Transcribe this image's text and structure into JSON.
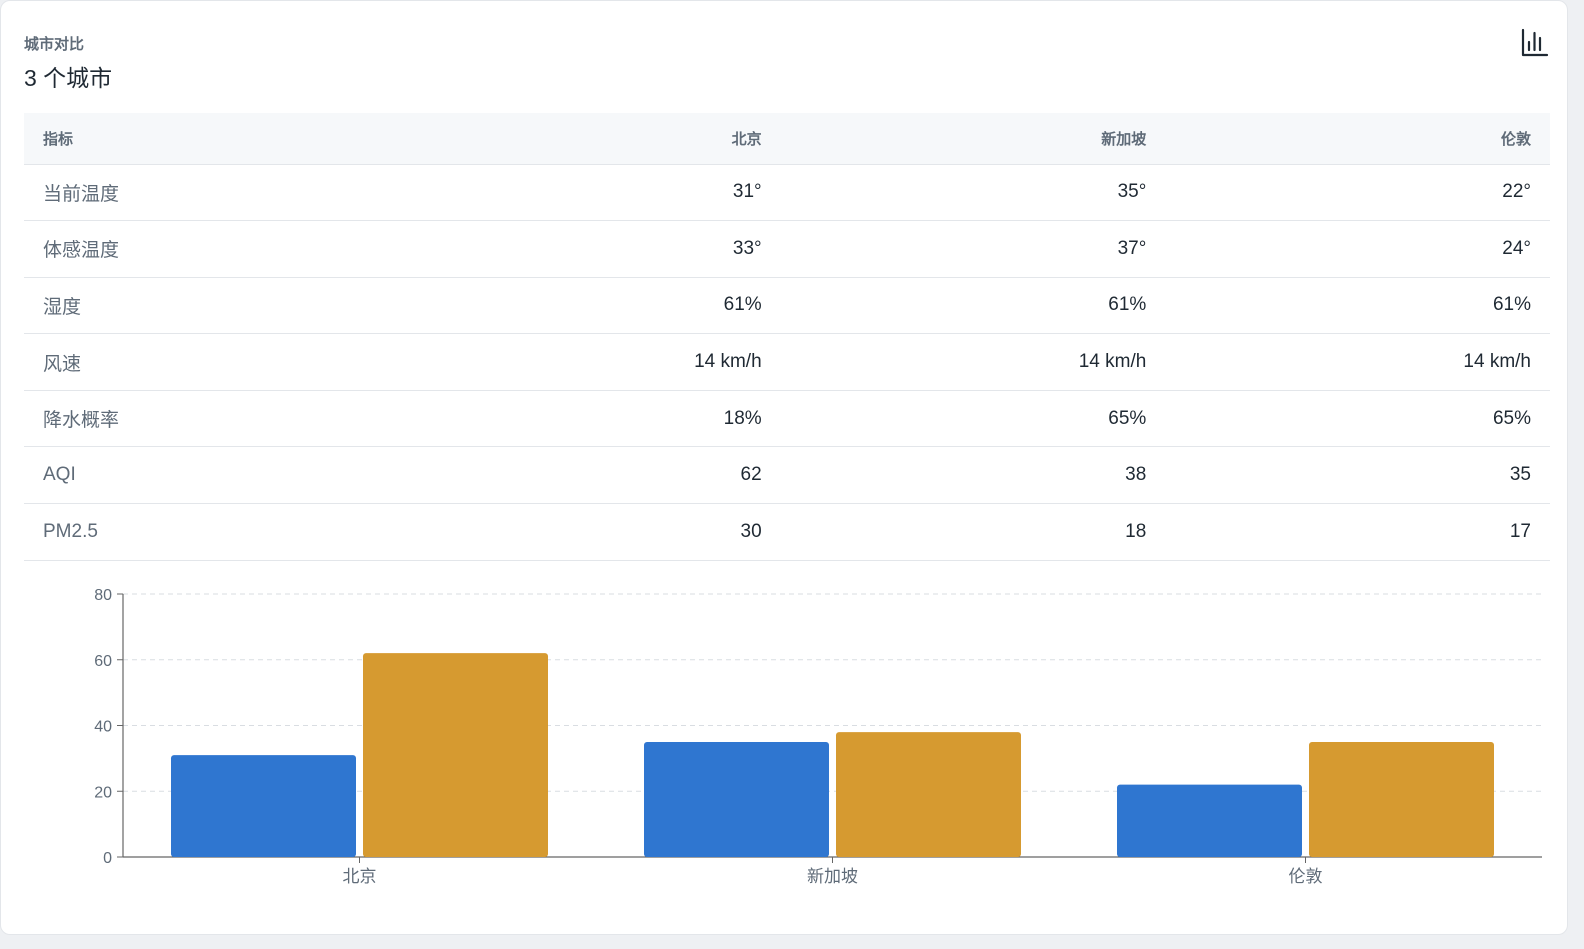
{
  "card": {
    "kicker": "城市对比",
    "title": "3 个城市",
    "toggle_icon": "bar-chart-icon"
  },
  "table": {
    "header": [
      "指标",
      "北京",
      "新加坡",
      "伦敦"
    ],
    "rows": [
      [
        "当前温度",
        "31°",
        "35°",
        "22°"
      ],
      [
        "体感温度",
        "33°",
        "37°",
        "24°"
      ],
      [
        "湿度",
        "61%",
        "61%",
        "61%"
      ],
      [
        "风速",
        "14 km/h",
        "14 km/h",
        "14 km/h"
      ],
      [
        "降水概率",
        "18%",
        "65%",
        "65%"
      ],
      [
        "AQI",
        "62",
        "38",
        "35"
      ],
      [
        "PM2.5",
        "30",
        "18",
        "17"
      ]
    ]
  },
  "chart_data": {
    "type": "bar",
    "categories": [
      "北京",
      "新加坡",
      "伦敦"
    ],
    "series": [
      {
        "values": [
          31,
          35,
          22
        ],
        "color": "#2f76d0"
      },
      {
        "values": [
          62,
          38,
          35
        ],
        "color": "#d69a30"
      }
    ],
    "ylim": [
      0,
      80
    ],
    "yticks": [
      0,
      20,
      40,
      60,
      80
    ],
    "grid": true,
    "grid_style": "dashed-horizontal"
  }
}
